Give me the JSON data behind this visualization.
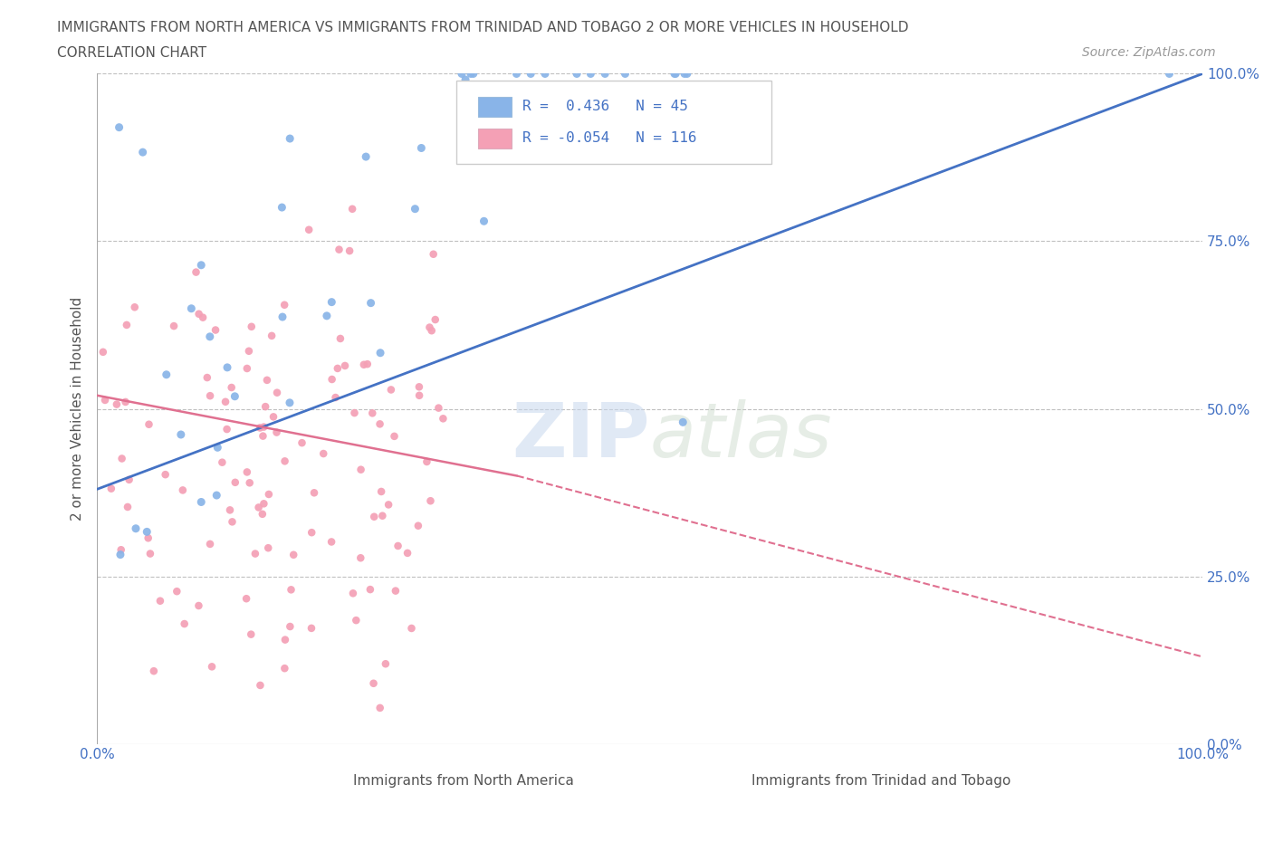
{
  "title_line1": "IMMIGRANTS FROM NORTH AMERICA VS IMMIGRANTS FROM TRINIDAD AND TOBAGO 2 OR MORE VEHICLES IN HOUSEHOLD",
  "title_line2": "CORRELATION CHART",
  "source_text": "Source: ZipAtlas.com",
  "watermark_zip": "ZIP",
  "watermark_atlas": "atlas",
  "ylabel": "2 or more Vehicles in Household",
  "xlim": [
    0.0,
    1.0
  ],
  "ylim": [
    0.0,
    1.0
  ],
  "yticks": [
    0.0,
    0.25,
    0.5,
    0.75,
    1.0
  ],
  "ytick_labels": [
    "0.0%",
    "25.0%",
    "50.0%",
    "75.0%",
    "100.0%"
  ],
  "xticks": [
    0.0,
    0.25,
    0.5,
    0.75,
    1.0
  ],
  "xtick_labels": [
    "0.0%",
    "",
    "",
    "",
    "100.0%"
  ],
  "series1_label": "Immigrants from North America",
  "series1_color": "#89b4e8",
  "series1_R": 0.436,
  "series1_N": 45,
  "series2_label": "Immigrants from Trinidad and Tobago",
  "series2_color": "#f4a0b5",
  "series2_R": -0.054,
  "series2_N": 116,
  "legend_text_color": "#4472c4",
  "title_color": "#555555",
  "tick_color": "#4472c4",
  "grid_color": "#c0c0c0",
  "background_color": "#ffffff",
  "trendline1_color": "#4472c4",
  "trendline2_color": "#e07090",
  "trendline1_y0": 0.38,
  "trendline1_y1": 1.0,
  "trendline2_y0": 0.52,
  "trendline2_y1": 0.4,
  "trendline2_x0": 0.0,
  "trendline2_x1": 0.38,
  "trendline2_dash_y0": 0.4,
  "trendline2_dash_y1": 0.13,
  "trendline2_dash_x0": 0.38,
  "trendline2_dash_x1": 1.0
}
